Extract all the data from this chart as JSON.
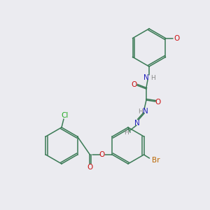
{
  "bg_color": "#ebebf0",
  "bond_color": "#3a7a55",
  "atom_colors": {
    "O": "#cc1111",
    "N": "#2222bb",
    "Cl": "#22aa22",
    "Br": "#bb6600",
    "H": "#888888",
    "C": "#3a7a55"
  },
  "figsize": [
    3.0,
    3.0
  ],
  "dpi": 100
}
